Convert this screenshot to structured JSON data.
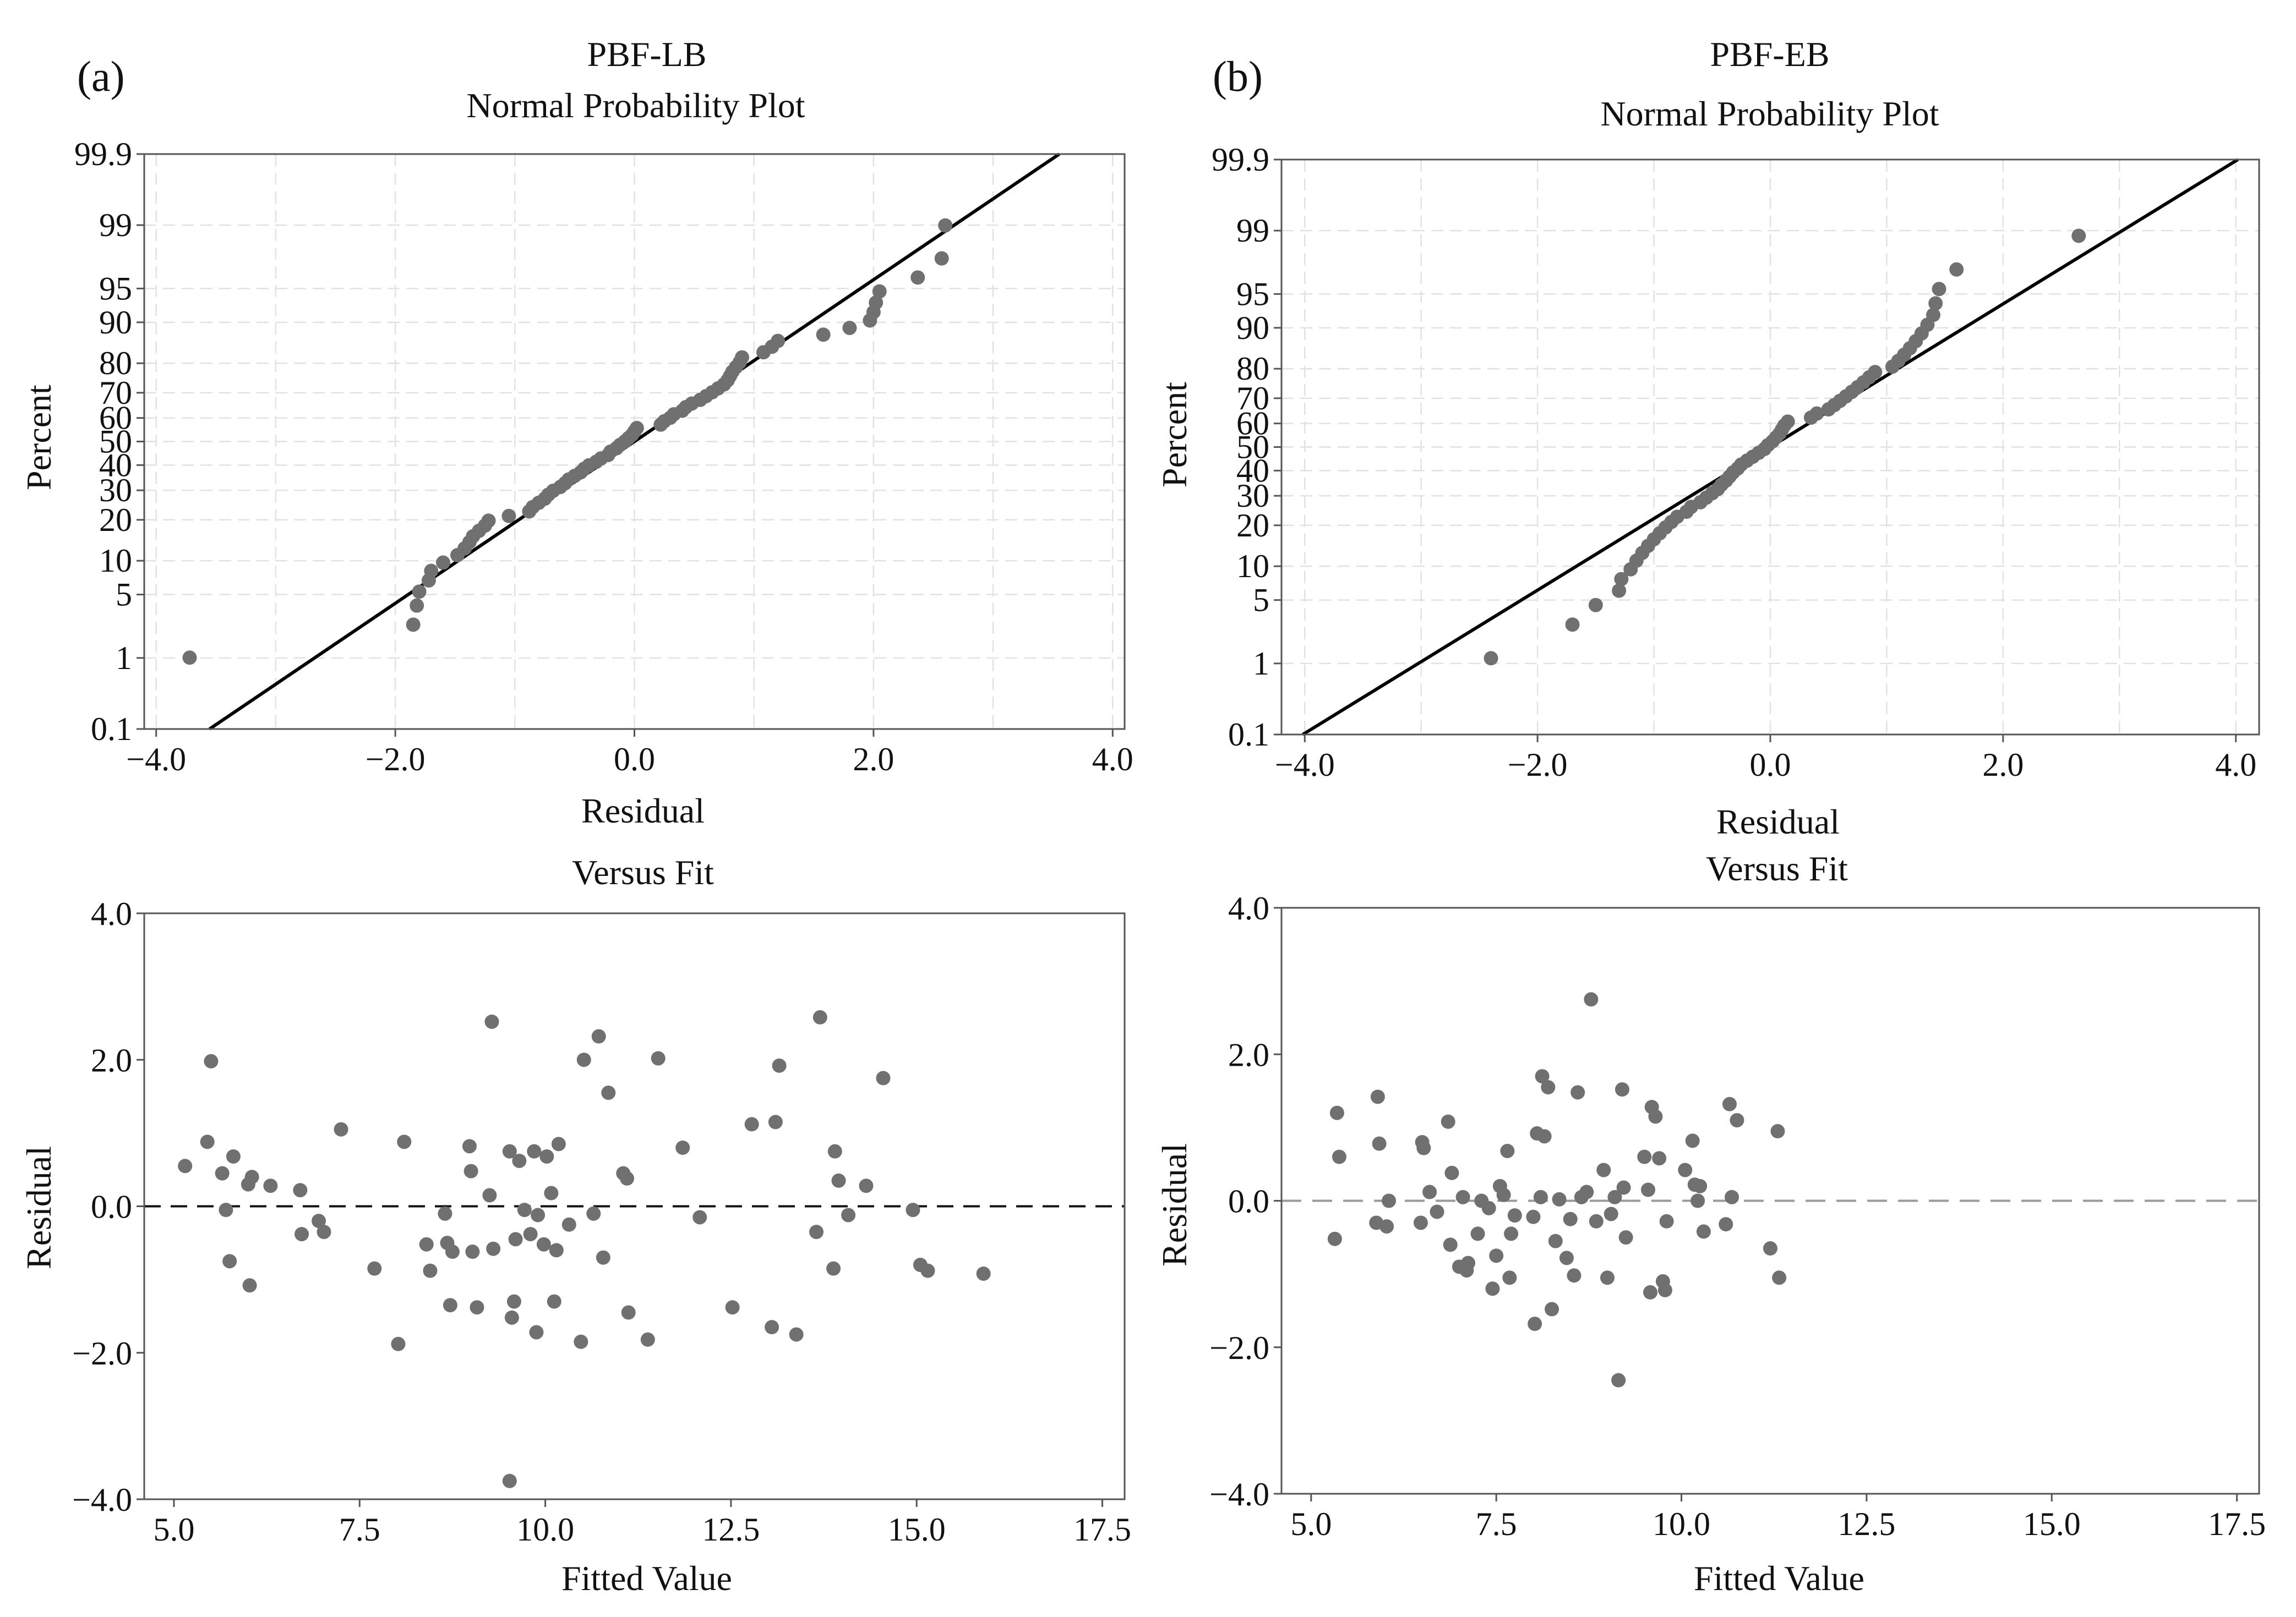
{
  "chart_data": [
    {
      "id": "a-npp",
      "type": "scatter",
      "panel_letter": "(a)",
      "title_line1": "PBF-LB",
      "title_line2": "Normal Probability Plot",
      "xlabel": "Residual",
      "ylabel": "Percent",
      "xlim": [
        -4.1,
        4.1
      ],
      "x_ticks": [
        -4,
        -2,
        0,
        2,
        4
      ],
      "x_tick_labels": [
        "−4.0",
        "−2.0",
        "0.0",
        "2.0",
        "4.0"
      ],
      "y_scale": "normal-probability",
      "ylim_percent": [
        0.1,
        99.9
      ],
      "y_ticks": [
        0.1,
        1,
        5,
        10,
        20,
        30,
        40,
        50,
        60,
        70,
        80,
        90,
        95,
        99,
        99.9
      ],
      "y_tick_labels": [
        "0.1",
        "1",
        "5",
        "10",
        "20",
        "30",
        "40",
        "50",
        "60",
        "70",
        "80",
        "90",
        "95",
        "99",
        "99.9"
      ],
      "fit_line": {
        "mean": 0.0,
        "sd": 1.15
      },
      "residuals": [
        -3.72,
        -1.85,
        -1.82,
        -1.8,
        -1.72,
        -1.7,
        -1.6,
        -1.48,
        -1.42,
        -1.38,
        -1.35,
        -1.3,
        -1.25,
        -1.22,
        -1.05,
        -0.88,
        -0.85,
        -0.8,
        -0.75,
        -0.72,
        -0.68,
        -0.62,
        -0.58,
        -0.55,
        -0.5,
        -0.45,
        -0.42,
        -0.38,
        -0.32,
        -0.28,
        -0.22,
        -0.2,
        -0.15,
        -0.12,
        -0.08,
        -0.05,
        -0.02,
        0.0,
        0.02,
        0.22,
        0.25,
        0.3,
        0.33,
        0.4,
        0.43,
        0.48,
        0.55,
        0.6,
        0.65,
        0.7,
        0.75,
        0.78,
        0.8,
        0.82,
        0.85,
        0.88,
        0.9,
        1.08,
        1.15,
        1.2,
        1.58,
        1.8,
        1.97,
        2.0,
        2.02,
        2.05,
        2.37,
        2.57,
        2.6
      ]
    },
    {
      "id": "b-npp",
      "type": "scatter",
      "panel_letter": "(b)",
      "title_line1": "PBF-EB",
      "title_line2": "Normal Probability Plot",
      "xlabel": "Residual",
      "ylabel": "Percent",
      "xlim": [
        -4.2,
        4.2
      ],
      "x_ticks": [
        -4,
        -2,
        0,
        2,
        4
      ],
      "x_tick_labels": [
        "−4.0",
        "−2.0",
        "0.0",
        "2.0",
        "4.0"
      ],
      "y_scale": "normal-probability",
      "ylim_percent": [
        0.1,
        99.9
      ],
      "y_ticks": [
        0.1,
        1,
        5,
        10,
        20,
        30,
        40,
        50,
        60,
        70,
        80,
        90,
        95,
        99,
        99.9
      ],
      "y_tick_labels": [
        "0.1",
        "1",
        "5",
        "10",
        "20",
        "30",
        "40",
        "50",
        "60",
        "70",
        "80",
        "90",
        "95",
        "99",
        "99.9"
      ],
      "fit_line": {
        "mean": 0.0,
        "sd": 1.3
      },
      "residuals": [
        -2.4,
        -1.7,
        -1.5,
        -1.3,
        -1.28,
        -1.2,
        -1.15,
        -1.1,
        -1.05,
        -1.0,
        -0.95,
        -0.9,
        -0.85,
        -0.8,
        -0.72,
        -0.68,
        -0.6,
        -0.55,
        -0.5,
        -0.45,
        -0.42,
        -0.38,
        -0.35,
        -0.32,
        -0.28,
        -0.25,
        -0.2,
        -0.15,
        -0.1,
        -0.05,
        -0.02,
        0.02,
        0.05,
        0.08,
        0.1,
        0.12,
        0.15,
        0.35,
        0.4,
        0.5,
        0.55,
        0.6,
        0.65,
        0.7,
        0.75,
        0.8,
        0.85,
        0.9,
        1.05,
        1.1,
        1.15,
        1.2,
        1.25,
        1.3,
        1.35,
        1.4,
        1.42,
        1.45,
        1.6,
        2.65
      ]
    },
    {
      "id": "a-vf",
      "type": "scatter",
      "title": "Versus Fit",
      "xlabel": "Fitted Value",
      "ylabel": "Residual",
      "xlim": [
        4.6,
        17.8
      ],
      "ylim": [
        -4.0,
        4.0
      ],
      "x_ticks": [
        5,
        7.5,
        10,
        12.5,
        15,
        17.5
      ],
      "x_tick_labels": [
        "5.0",
        "7.5",
        "10.0",
        "12.5",
        "15.0",
        "17.5"
      ],
      "y_ticks": [
        -4,
        -2,
        0,
        2,
        4
      ],
      "y_tick_labels": [
        "−4.0",
        "−2.0",
        "0.0",
        "2.0",
        "4.0"
      ],
      "reference_line": 0.0,
      "reference_style": "dashed-black",
      "points": [
        [
          5.15,
          0.55
        ],
        [
          5.45,
          0.88
        ],
        [
          5.5,
          1.98
        ],
        [
          5.65,
          0.45
        ],
        [
          5.7,
          -0.05
        ],
        [
          5.75,
          -0.75
        ],
        [
          5.8,
          0.68
        ],
        [
          6.0,
          0.3
        ],
        [
          6.02,
          -1.08
        ],
        [
          6.05,
          0.4
        ],
        [
          6.3,
          0.28
        ],
        [
          6.7,
          0.22
        ],
        [
          6.72,
          -0.38
        ],
        [
          6.95,
          -0.2
        ],
        [
          7.02,
          -0.35
        ],
        [
          7.25,
          1.05
        ],
        [
          7.7,
          -0.85
        ],
        [
          8.02,
          -1.88
        ],
        [
          8.1,
          0.88
        ],
        [
          8.4,
          -0.52
        ],
        [
          8.45,
          -0.88
        ],
        [
          8.65,
          -0.1
        ],
        [
          8.68,
          -0.5
        ],
        [
          8.72,
          -1.35
        ],
        [
          8.75,
          -0.62
        ],
        [
          8.98,
          0.82
        ],
        [
          9.0,
          0.48
        ],
        [
          9.02,
          -0.62
        ],
        [
          9.08,
          -1.38
        ],
        [
          9.25,
          0.15
        ],
        [
          9.28,
          2.52
        ],
        [
          9.3,
          -0.58
        ],
        [
          9.52,
          0.75
        ],
        [
          9.55,
          -1.52
        ],
        [
          9.58,
          -1.3
        ],
        [
          9.6,
          -0.45
        ],
        [
          9.65,
          0.62
        ],
        [
          9.72,
          -0.05
        ],
        [
          9.8,
          -0.38
        ],
        [
          9.85,
          0.75
        ],
        [
          9.88,
          -1.72
        ],
        [
          9.9,
          -0.12
        ],
        [
          9.98,
          -0.52
        ],
        [
          10.02,
          0.68
        ],
        [
          10.08,
          0.18
        ],
        [
          10.12,
          -1.3
        ],
        [
          10.15,
          -0.6
        ],
        [
          10.18,
          0.85
        ],
        [
          10.32,
          -0.25
        ],
        [
          10.48,
          -1.85
        ],
        [
          10.52,
          2.0
        ],
        [
          10.65,
          -0.1
        ],
        [
          10.72,
          2.32
        ],
        [
          10.78,
          -0.7
        ],
        [
          10.85,
          1.55
        ],
        [
          11.05,
          0.45
        ],
        [
          11.1,
          0.38
        ],
        [
          11.12,
          -1.45
        ],
        [
          11.38,
          -1.82
        ],
        [
          11.52,
          2.02
        ],
        [
          11.85,
          0.8
        ],
        [
          12.08,
          -0.15
        ],
        [
          12.52,
          -1.38
        ],
        [
          12.78,
          1.12
        ],
        [
          13.05,
          -1.65
        ],
        [
          13.1,
          1.15
        ],
        [
          13.15,
          1.92
        ],
        [
          13.38,
          -1.75
        ],
        [
          13.65,
          -0.35
        ],
        [
          13.7,
          2.58
        ],
        [
          13.88,
          -0.85
        ],
        [
          13.9,
          0.75
        ],
        [
          13.95,
          0.35
        ],
        [
          14.08,
          -0.12
        ],
        [
          14.32,
          0.28
        ],
        [
          14.55,
          1.75
        ],
        [
          14.95,
          -0.05
        ],
        [
          15.05,
          -0.8
        ],
        [
          15.15,
          -0.88
        ],
        [
          15.9,
          -0.92
        ],
        [
          9.52,
          -3.75
        ]
      ]
    },
    {
      "id": "b-vf",
      "type": "scatter",
      "title": "Versus Fit",
      "xlabel": "Fitted Value",
      "ylabel": "Residual",
      "xlim": [
        4.6,
        17.8
      ],
      "ylim": [
        -4.0,
        4.0
      ],
      "x_ticks": [
        5,
        7.5,
        10,
        12.5,
        15,
        17.5
      ],
      "x_tick_labels": [
        "5.0",
        "7.5",
        "10.0",
        "12.5",
        "15.0",
        "17.5"
      ],
      "y_ticks": [
        -4,
        -2,
        0,
        2,
        4
      ],
      "y_tick_labels": [
        "−4.0",
        "−2.0",
        "0.0",
        "2.0",
        "4.0"
      ],
      "reference_line": 0.0,
      "reference_style": "dashed-grey",
      "points": [
        [
          5.35,
          1.2
        ],
        [
          5.38,
          0.6
        ],
        [
          5.32,
          -0.52
        ],
        [
          5.9,
          1.42
        ],
        [
          5.92,
          0.78
        ],
        [
          5.88,
          -0.3
        ],
        [
          6.05,
          0.0
        ],
        [
          6.02,
          -0.35
        ],
        [
          6.5,
          0.8
        ],
        [
          6.52,
          0.72
        ],
        [
          6.48,
          -0.3
        ],
        [
          6.6,
          0.12
        ],
        [
          6.7,
          -0.15
        ],
        [
          6.85,
          1.08
        ],
        [
          6.9,
          0.38
        ],
        [
          6.88,
          -0.6
        ],
        [
          7.0,
          -0.9
        ],
        [
          7.05,
          0.05
        ],
        [
          7.1,
          -0.95
        ],
        [
          7.12,
          -0.85
        ],
        [
          7.25,
          -0.45
        ],
        [
          7.3,
          0.0
        ],
        [
          7.4,
          -0.1
        ],
        [
          7.45,
          -1.2
        ],
        [
          7.5,
          -0.75
        ],
        [
          7.55,
          0.2
        ],
        [
          7.6,
          0.08
        ],
        [
          7.65,
          0.68
        ],
        [
          7.68,
          -1.05
        ],
        [
          7.7,
          -0.45
        ],
        [
          7.75,
          -0.2
        ],
        [
          8.0,
          -0.22
        ],
        [
          8.02,
          -1.68
        ],
        [
          8.05,
          0.92
        ],
        [
          8.1,
          0.05
        ],
        [
          8.12,
          1.7
        ],
        [
          8.15,
          0.88
        ],
        [
          8.2,
          1.55
        ],
        [
          8.25,
          -1.48
        ],
        [
          8.3,
          -0.55
        ],
        [
          8.35,
          0.02
        ],
        [
          8.45,
          -0.78
        ],
        [
          8.5,
          -0.25
        ],
        [
          8.55,
          -1.02
        ],
        [
          8.6,
          1.48
        ],
        [
          8.65,
          0.05
        ],
        [
          8.72,
          0.12
        ],
        [
          8.78,
          2.75
        ],
        [
          8.85,
          -0.28
        ],
        [
          8.95,
          0.42
        ],
        [
          9.0,
          -1.05
        ],
        [
          9.05,
          -0.18
        ],
        [
          9.1,
          0.05
        ],
        [
          9.15,
          -2.45
        ],
        [
          9.2,
          1.52
        ],
        [
          9.22,
          0.18
        ],
        [
          9.25,
          -0.5
        ],
        [
          9.5,
          0.6
        ],
        [
          9.55,
          0.15
        ],
        [
          9.58,
          -1.25
        ],
        [
          9.6,
          1.28
        ],
        [
          9.65,
          1.15
        ],
        [
          9.7,
          0.58
        ],
        [
          9.75,
          -1.1
        ],
        [
          9.78,
          -1.22
        ],
        [
          9.8,
          -0.28
        ],
        [
          10.05,
          0.42
        ],
        [
          10.15,
          0.82
        ],
        [
          10.18,
          0.22
        ],
        [
          10.22,
          0.0
        ],
        [
          10.25,
          0.2
        ],
        [
          10.3,
          -0.42
        ],
        [
          10.6,
          -0.32
        ],
        [
          10.65,
          1.32
        ],
        [
          10.68,
          0.05
        ],
        [
          10.75,
          1.1
        ],
        [
          11.2,
          -0.65
        ],
        [
          11.3,
          0.95
        ],
        [
          11.32,
          -1.05
        ]
      ]
    }
  ]
}
